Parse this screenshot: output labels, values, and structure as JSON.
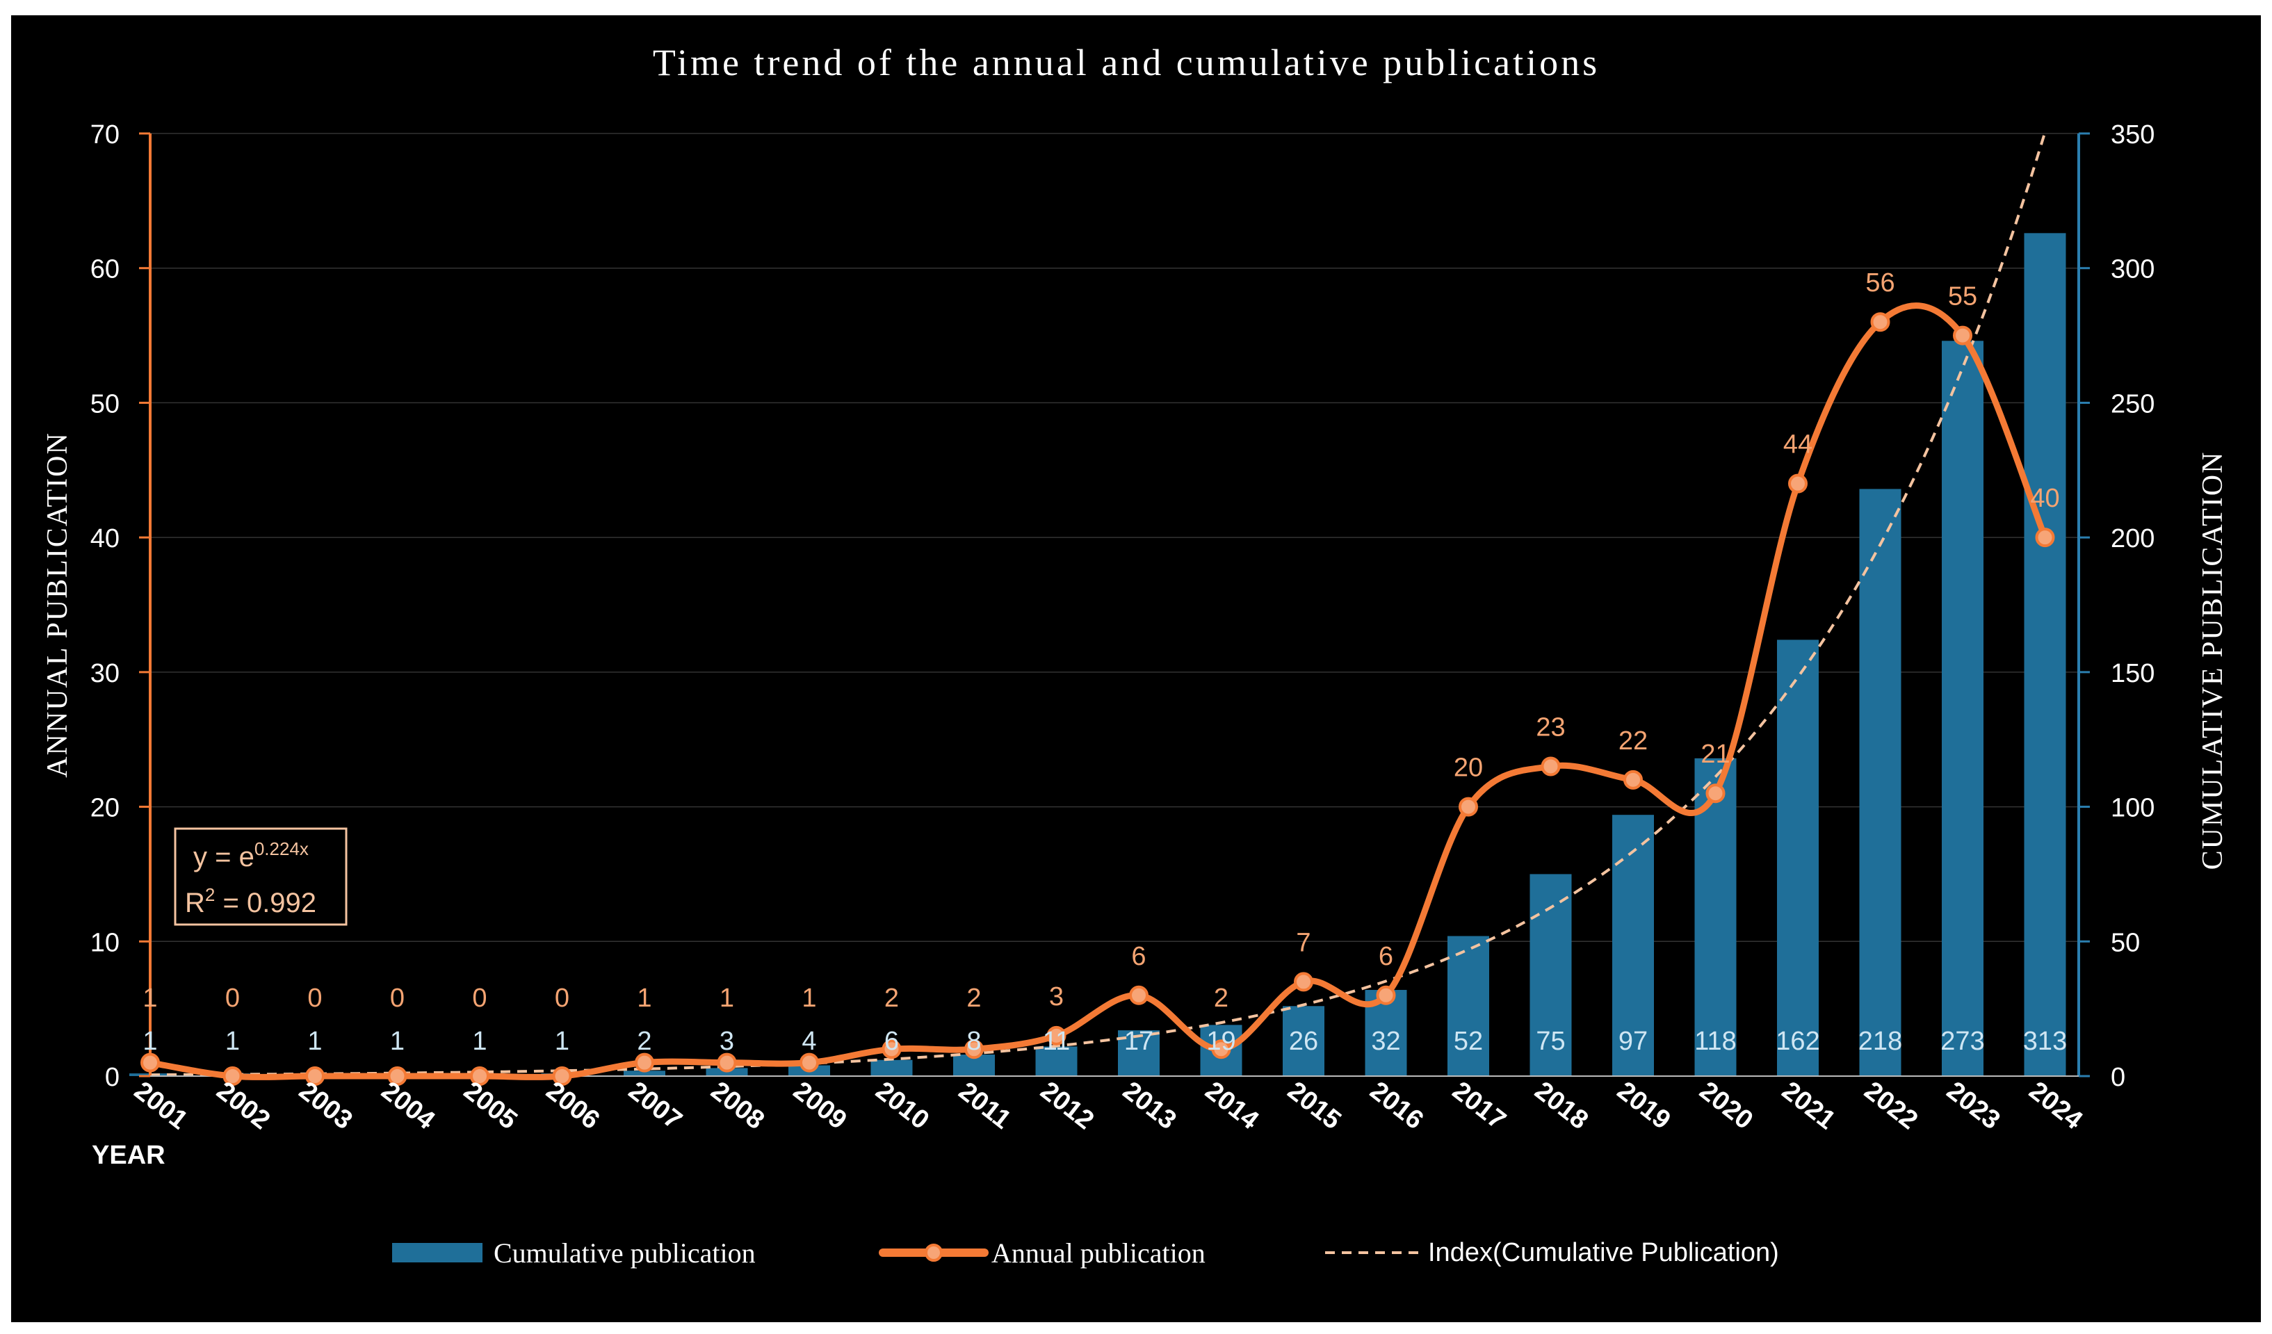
{
  "chart_data": {
    "type": "bar",
    "title": "Time trend of the annual and cumulative publications",
    "xlabel": "YEAR",
    "ylabel": "ANNUAL  PUBLICATION",
    "y2label": "CUMULATIVE  PUBLICATION",
    "categories": [
      "2001",
      "2002",
      "2003",
      "2004",
      "2005",
      "2006",
      "2007",
      "2008",
      "2009",
      "2010",
      "2011",
      "2012",
      "2013",
      "2014",
      "2015",
      "2016",
      "2017",
      "2018",
      "2019",
      "2020",
      "2021",
      "2022",
      "2023",
      "2024"
    ],
    "ylim": [
      0,
      70
    ],
    "y2lim": [
      0,
      350
    ],
    "yticks": [
      "0",
      "10",
      "20",
      "30",
      "40",
      "50",
      "60",
      "70"
    ],
    "y2ticks": [
      "0",
      "50",
      "100",
      "150",
      "200",
      "250",
      "300",
      "350"
    ],
    "series": [
      {
        "name": "Cumulative publication",
        "kind": "bar",
        "axis": "right",
        "values": [
          1,
          1,
          1,
          1,
          1,
          1,
          2,
          3,
          4,
          6,
          8,
          11,
          17,
          19,
          26,
          32,
          52,
          75,
          97,
          118,
          162,
          218,
          273,
          313
        ],
        "labels": [
          "1",
          "1",
          "1",
          "1",
          "1",
          "1",
          "2",
          "3",
          "4",
          "6",
          "8",
          "11",
          "17",
          "19",
          "26",
          "32",
          "52",
          "75",
          "97",
          "118",
          "162",
          "218",
          "273",
          "313"
        ]
      },
      {
        "name": "Annual publication",
        "kind": "smooth-line-markers",
        "axis": "left",
        "values": [
          1,
          0,
          0,
          0,
          0,
          0,
          1,
          1,
          1,
          2,
          2,
          3,
          6,
          2,
          7,
          6,
          20,
          23,
          22,
          21,
          44,
          56,
          55,
          40
        ],
        "labels": [
          "1",
          "0",
          "0",
          "0",
          "0",
          "0",
          "1",
          "1",
          "1",
          "2",
          "2",
          "3",
          "6",
          "2",
          "7",
          "6",
          "20",
          "23",
          "22",
          "21",
          "44",
          "56",
          "55",
          "40"
        ]
      },
      {
        "name": "Index(Cumulative Publication)",
        "kind": "dashed-trendline",
        "axis": "right",
        "formula": "exponential"
      }
    ],
    "annotation": {
      "equation_base": "y = e",
      "equation_exponent": "0.224x",
      "r2_label": "R",
      "r2_sup": "2",
      "r2_value": " = 0.992"
    },
    "legend": {
      "position": "bottom",
      "items": [
        "Cumulative publication",
        "Annual publication",
        "Index(Cumulative Publication)"
      ]
    },
    "colors": {
      "background": "#000000",
      "bar": "#1f6f99",
      "bar_label": "#cfe6f3",
      "right_axis": "#2b7fb0",
      "line": "#f47a35",
      "line_label": "#f5a472",
      "marker_fill": "#f7a577",
      "trend": "#f4c3a0",
      "text": "#ffffff"
    }
  }
}
